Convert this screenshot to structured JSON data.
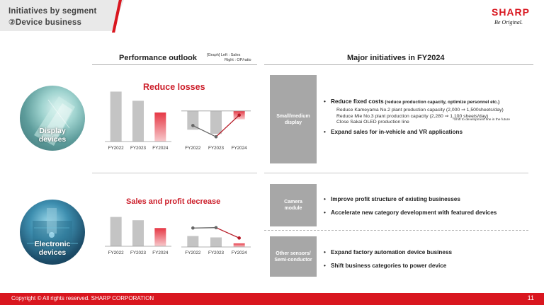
{
  "header": {
    "title_line1": "Initiatives by segment",
    "title_line2": "②Device business",
    "logo": "SHARP",
    "tagline": "Be Original."
  },
  "performance": {
    "title": "Performance outlook",
    "graph_note_line1": "[Graph]  Left : Sales",
    "graph_note_line2": "Right : OP/ratio"
  },
  "major": {
    "title": "Major initiatives in FY2024"
  },
  "segments": [
    {
      "name": "Display devices",
      "label_line1": "Display",
      "label_line2": "devices",
      "headline": "Reduce losses"
    },
    {
      "name": "Electronic devices",
      "label_line1": "Electronic",
      "label_line2": "devices",
      "headline": "Sales and profit decrease"
    }
  ],
  "categories": [
    {
      "line1": "Small/medium",
      "line2": "display",
      "bullets": [
        {
          "text": "Reduce fixed costs",
          "note": " (reduce production capacity, optimize personnel etc.)",
          "subs": [
            "Reduce Kameyama No.2 plant production capacity (2,000 ⇒ 1,500sheets/day)",
            "Reduce Mie No.3 plant production capacity (2,280 ⇒ 1,100 sheets/day)",
            "Close Sakai OLED production line"
          ],
          "footnote": "*Shift to development line in the future"
        },
        {
          "text": "Expand sales for in-vehicle and VR applications"
        }
      ]
    },
    {
      "line1": "Camera",
      "line2": "module",
      "bullets": [
        {
          "text": "Improve profit structure of existing businesses"
        },
        {
          "text": "Accelerate new category development with featured devices"
        }
      ]
    },
    {
      "line1": "Other sensors/",
      "line2": "Semi-conductor",
      "bullets": [
        {
          "text": "Expand factory automation device business"
        },
        {
          "text": "Shift business categories to power device"
        }
      ]
    }
  ],
  "chart_data": [
    {
      "type": "bar",
      "segment": "Display devices",
      "categories": [
        "FY2022",
        "FY2023",
        "FY2024"
      ],
      "values": [
        0.98,
        0.8,
        0.57
      ],
      "ylim": [
        0,
        1
      ],
      "highlight_index": 2
    },
    {
      "type": "bar+line",
      "segment": "Display devices",
      "categories": [
        "FY2022",
        "FY2023",
        "FY2024"
      ],
      "bar_values": [
        -0.45,
        -0.55,
        -0.2
      ],
      "line_values": [
        -0.35,
        -0.62,
        -0.1
      ],
      "ylim": [
        -0.7,
        0.15
      ],
      "highlight_index": 2
    },
    {
      "type": "bar",
      "segment": "Electronic devices",
      "categories": [
        "FY2022",
        "FY2023",
        "FY2024"
      ],
      "values": [
        0.9,
        0.8,
        0.56
      ],
      "ylim": [
        0,
        1
      ],
      "highlight_index": 2
    },
    {
      "type": "bar+line",
      "segment": "Electronic devices",
      "categories": [
        "FY2022",
        "FY2023",
        "FY2024"
      ],
      "bar_values": [
        0.55,
        0.48,
        0.18
      ],
      "line_values": [
        0.95,
        0.97,
        0.45
      ],
      "ylim": [
        0,
        1.1
      ],
      "highlight_index": 2
    }
  ],
  "colors": {
    "accent": "#d9161f",
    "bar_gray": "#c4c4c4",
    "bar_highlight": "#e63845",
    "line_gray": "#666666",
    "line_red": "#b51622"
  },
  "footer": {
    "copyright": "Copyright © All rights reserved. SHARP CORPORATION",
    "page": "11"
  }
}
